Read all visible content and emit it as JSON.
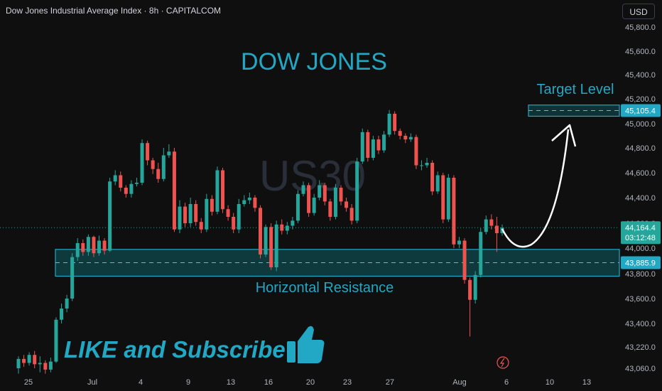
{
  "header": {
    "title": "Dow Jones Industrial Average Index · 8h · CAPITALCOM",
    "currency": "USD"
  },
  "watermark": "US30",
  "annotations": {
    "headline": "DOW JONES",
    "target_label": "Target Level",
    "resistance_label": "Horizontal Resistance",
    "cta": "LIKE and Subscribe"
  },
  "colors": {
    "up": "#26a69a",
    "down": "#ef5350",
    "accent": "#22a7c4",
    "zone": "#0f5e66"
  },
  "chart_data": {
    "type": "candlestick",
    "title": "Dow Jones Industrial Average Index · 8h · CAPITALCOM",
    "ylim": [
      43000,
      45900
    ],
    "y_ticks": [
      "45,800.0",
      "45,600.0",
      "45,400.0",
      "45,200.0",
      "45,000.0",
      "44,800.0",
      "44,600.0",
      "44,400.0",
      "44,200.0",
      "44,000.0",
      "43,800.0",
      "43,600.0",
      "43,400.0",
      "43,220.0",
      "43,060.0"
    ],
    "x_ticks": [
      "25",
      "Jul",
      "4",
      "9",
      "13",
      "16",
      "20",
      "23",
      "27",
      "Aug",
      "6",
      "10",
      "13"
    ],
    "price_labels": {
      "target": "45,105.4",
      "current": "44,164.4",
      "countdown": "03:12:48",
      "support": "43,885.9"
    },
    "levels": {
      "target": 45105.4,
      "current": 44164.4,
      "support": 43885.9,
      "resistance_zone": [
        43780,
        43990
      ],
      "target_zone": [
        45060,
        45150
      ]
    },
    "candles": [
      [
        43060,
        43130,
        43020,
        43150
      ],
      [
        43130,
        43100,
        43070,
        43160
      ],
      [
        43100,
        43160,
        43080,
        43180
      ],
      [
        43160,
        43090,
        43060,
        43190
      ],
      [
        43090,
        43100,
        43030,
        43150
      ],
      [
        43100,
        43050,
        43020,
        43120
      ],
      [
        43050,
        43110,
        43030,
        43140
      ],
      [
        43110,
        43430,
        43100,
        43450
      ],
      [
        43430,
        43520,
        43400,
        43560
      ],
      [
        43520,
        43600,
        43490,
        43630
      ],
      [
        43600,
        43930,
        43580,
        43960
      ],
      [
        43930,
        44040,
        43900,
        44080
      ],
      [
        44040,
        43970,
        43940,
        44070
      ],
      [
        43970,
        44090,
        43940,
        44110
      ],
      [
        44090,
        43960,
        43930,
        44100
      ],
      [
        43960,
        44060,
        43940,
        44100
      ],
      [
        44060,
        43980,
        43950,
        44080
      ],
      [
        43980,
        44530,
        43970,
        44560
      ],
      [
        44530,
        44580,
        44500,
        44620
      ],
      [
        44580,
        44480,
        44450,
        44610
      ],
      [
        44480,
        44430,
        44400,
        44500
      ],
      [
        44430,
        44510,
        44400,
        44540
      ],
      [
        44510,
        44520,
        44490,
        44560
      ],
      [
        44520,
        44840,
        44500,
        44870
      ],
      [
        44840,
        44700,
        44660,
        44860
      ],
      [
        44700,
        44630,
        44590,
        44720
      ],
      [
        44630,
        44550,
        44520,
        44680
      ],
      [
        44550,
        44740,
        44530,
        44800
      ],
      [
        44740,
        44770,
        44720,
        44830
      ],
      [
        44770,
        44150,
        44130,
        44800
      ],
      [
        44150,
        44330,
        44120,
        44380
      ],
      [
        44330,
        44200,
        44170,
        44360
      ],
      [
        44200,
        44350,
        44170,
        44400
      ],
      [
        44350,
        44210,
        44180,
        44380
      ],
      [
        44210,
        44150,
        44120,
        44240
      ],
      [
        44150,
        44390,
        44130,
        44430
      ],
      [
        44390,
        44290,
        44260,
        44420
      ],
      [
        44290,
        44620,
        44270,
        44650
      ],
      [
        44620,
        44310,
        44280,
        44640
      ],
      [
        44310,
        44250,
        44220,
        44340
      ],
      [
        44250,
        44150,
        44120,
        44280
      ],
      [
        44150,
        44350,
        44120,
        44390
      ],
      [
        44350,
        44380,
        44330,
        44420
      ],
      [
        44380,
        44400,
        44350,
        44440
      ],
      [
        44400,
        44320,
        44290,
        44420
      ],
      [
        44320,
        43950,
        43920,
        44340
      ],
      [
        43950,
        44170,
        43930,
        44190
      ],
      [
        44170,
        43850,
        43830,
        44200
      ],
      [
        43850,
        44190,
        43820,
        44220
      ],
      [
        44190,
        44140,
        44110,
        44230
      ],
      [
        44140,
        44180,
        44110,
        44210
      ],
      [
        44180,
        44220,
        44150,
        44250
      ],
      [
        44220,
        44430,
        44200,
        44460
      ],
      [
        44430,
        44500,
        44410,
        44530
      ],
      [
        44500,
        44280,
        44250,
        44520
      ],
      [
        44280,
        44400,
        44260,
        44430
      ],
      [
        44400,
        44500,
        44380,
        44540
      ],
      [
        44500,
        44370,
        44340,
        44520
      ],
      [
        44370,
        44250,
        44220,
        44390
      ],
      [
        44250,
        44480,
        44230,
        44510
      ],
      [
        44480,
        44370,
        44340,
        44500
      ],
      [
        44370,
        44320,
        44290,
        44400
      ],
      [
        44320,
        44220,
        44190,
        44350
      ],
      [
        44220,
        44690,
        44200,
        44720
      ],
      [
        44690,
        44930,
        44670,
        44960
      ],
      [
        44930,
        44720,
        44690,
        44950
      ],
      [
        44720,
        44870,
        44700,
        44900
      ],
      [
        44870,
        44780,
        44750,
        44900
      ],
      [
        44780,
        44910,
        44760,
        44940
      ],
      [
        44910,
        45080,
        44890,
        45110
      ],
      [
        45080,
        44940,
        44910,
        45100
      ],
      [
        44940,
        44900,
        44870,
        44960
      ],
      [
        44900,
        44870,
        44840,
        44920
      ],
      [
        44870,
        44890,
        44850,
        44920
      ],
      [
        44890,
        44660,
        44630,
        44910
      ],
      [
        44660,
        44660,
        44620,
        44700
      ],
      [
        44660,
        44680,
        44640,
        44720
      ],
      [
        44680,
        44450,
        44420,
        44700
      ],
      [
        44450,
        44580,
        44430,
        44610
      ],
      [
        44580,
        44230,
        44200,
        44600
      ],
      [
        44230,
        44560,
        44210,
        44590
      ],
      [
        44560,
        44030,
        44000,
        44580
      ],
      [
        44030,
        44060,
        44000,
        44090
      ],
      [
        44060,
        43750,
        43720,
        44080
      ],
      [
        43750,
        43590,
        43300,
        43770
      ],
      [
        43590,
        43790,
        43560,
        43820
      ],
      [
        43790,
        44130,
        43770,
        44160
      ],
      [
        44130,
        44230,
        44110,
        44260
      ],
      [
        44230,
        44180,
        44150,
        44270
      ],
      [
        44180,
        44120,
        43970,
        44250
      ],
      [
        44120,
        44164.4,
        44100,
        44190
      ]
    ]
  }
}
